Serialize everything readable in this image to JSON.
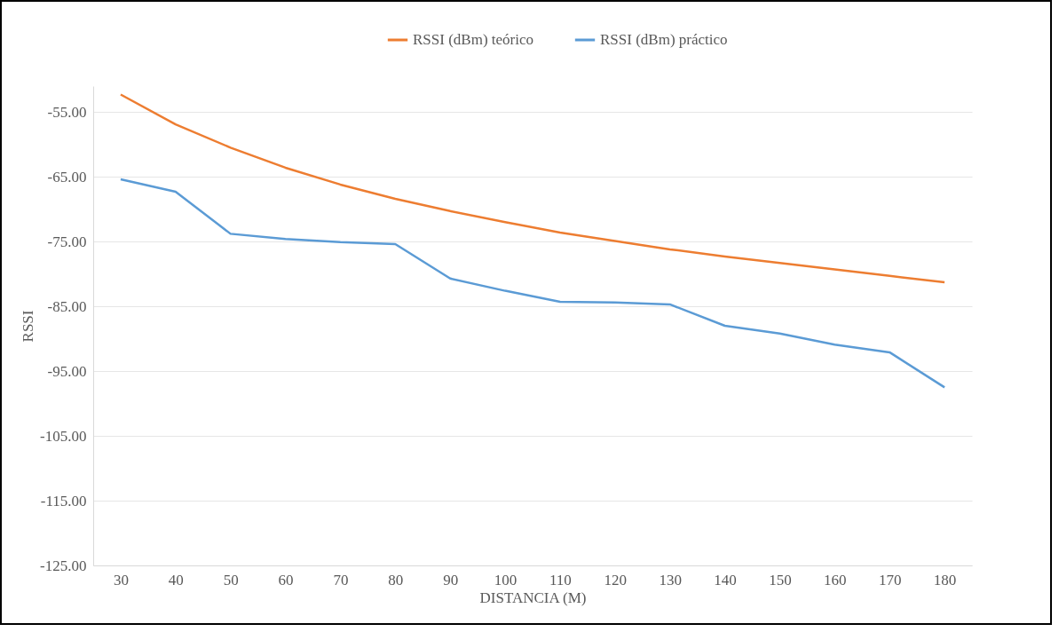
{
  "chart_data": {
    "type": "line",
    "xlabel": "DISTANCIA (M)",
    "ylabel": "RSSI",
    "categories": [
      "30",
      "40",
      "50",
      "60",
      "70",
      "80",
      "90",
      "100",
      "110",
      "120",
      "130",
      "140",
      "150",
      "160",
      "170",
      "180"
    ],
    "series": [
      {
        "name": "RSSI (dBm) teórico",
        "color": "#ed7d31",
        "values": [
          -52.3,
          -56.9,
          -60.5,
          -63.6,
          -66.2,
          -68.4,
          -70.3,
          -72.0,
          -73.6,
          -74.9,
          -76.2,
          -77.3,
          -78.3,
          -79.3,
          -80.3,
          -81.3
        ]
      },
      {
        "name": "RSSI (dBm) práctico",
        "color": "#5b9bd5",
        "values": [
          -65.4,
          -67.3,
          -73.8,
          -74.6,
          -75.1,
          -75.4,
          -80.7,
          -82.6,
          -84.3,
          -84.4,
          -84.7,
          -88.0,
          -89.2,
          -90.9,
          -92.1,
          -97.5
        ]
      }
    ],
    "ylim": [
      -125,
      -51
    ],
    "yticks": [
      {
        "value": -125,
        "label": "-125.00"
      },
      {
        "value": -115,
        "label": "-115.00"
      },
      {
        "value": -105,
        "label": "-105.00"
      },
      {
        "value": -95,
        "label": "-95.00"
      },
      {
        "value": -85,
        "label": "-85.00"
      },
      {
        "value": -75,
        "label": "-75.00"
      },
      {
        "value": -65,
        "label": "-65.00"
      },
      {
        "value": -55,
        "label": "-55.00"
      }
    ],
    "grid": "y",
    "legend": "top",
    "marker": "none",
    "line_style": "solid"
  }
}
